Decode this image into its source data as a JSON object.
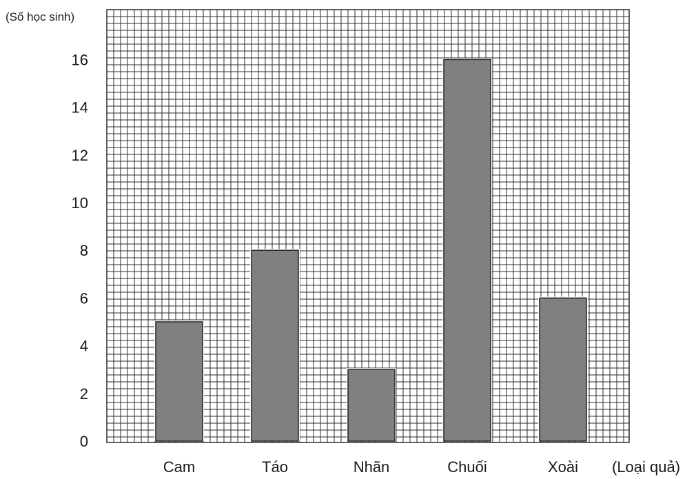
{
  "chart_data": {
    "type": "bar",
    "xlabel": "(Loại quả)",
    "ylabel": "(Số học sinh)",
    "categories": [
      "Cam",
      "Táo",
      "Nhãn",
      "Chuối",
      "Xoài"
    ],
    "values": [
      5,
      8,
      3,
      16,
      6
    ],
    "ylim": [
      0,
      18
    ],
    "yticks": [
      "0",
      "2",
      "4",
      "6",
      "8",
      "10",
      "12",
      "14",
      "16"
    ],
    "grid": true,
    "colors": {
      "bar": "#808080",
      "grid": "#2b2b2b",
      "text": "#1a1a1a"
    }
  }
}
